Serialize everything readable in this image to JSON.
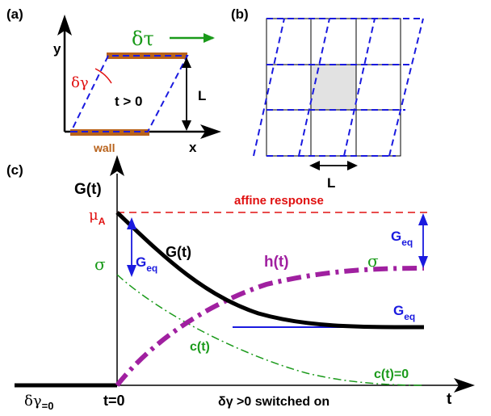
{
  "panel_a": {
    "label": "(a)",
    "axis_y": "y",
    "axis_x": "x",
    "shear_stress": "δτ",
    "shear_angle": "δγ",
    "time_condition": "t > 0",
    "length": "L",
    "wall": "wall"
  },
  "panel_b": {
    "label": "(b)",
    "length": "L"
  },
  "panel_c": {
    "label": "(c)",
    "y_axis_label": "G(t)",
    "x_axis_label": "t",
    "affine_response": "affine response",
    "mu_a_main": "μ",
    "mu_a_sub": "A",
    "sigma_left": "σ",
    "sigma_right": "σ",
    "geq_main": "G",
    "geq_sub": "eq",
    "curve_g": "G(t)",
    "curve_h": "h(t)",
    "curve_c": "c(t)",
    "c_zero": "c(t)=0",
    "delta_gamma_zero_main": "δγ",
    "delta_gamma_zero_sub": "=0",
    "t_zero": "t=0",
    "switched_on": "δγ >0 switched on"
  },
  "colors": {
    "black": "#000000",
    "blue": "#1a1adf",
    "red": "#e01010",
    "green": "#1a9a1a",
    "purple": "#a020a0",
    "wall": "#b8621b",
    "gray_cell": "#e2e2e2"
  }
}
